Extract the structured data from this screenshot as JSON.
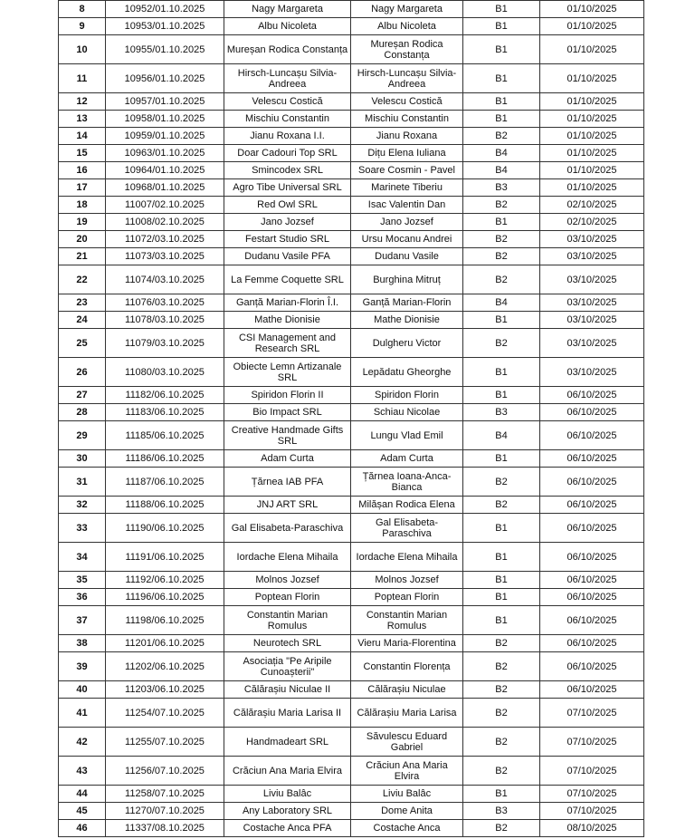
{
  "rows": [
    {
      "nr": "8",
      "reg": "10952/01.10.2025",
      "name": "Nagy Margareta",
      "person": "Nagy Margareta",
      "cat": "B1",
      "date": "01/10/2025"
    },
    {
      "nr": "9",
      "reg": "10953/01.10.2025",
      "name": "Albu Nicoleta",
      "person": "Albu Nicoleta",
      "cat": "B1",
      "date": "01/10/2025"
    },
    {
      "nr": "10",
      "reg": "10955/01.10.2025",
      "name": "Mureșan Rodica Constanța",
      "person": "Mureșan Rodica Constanța",
      "cat": "B1",
      "date": "01/10/2025"
    },
    {
      "nr": "11",
      "reg": "10956/01.10.2025",
      "name": "Hirsch-Luncașu Silvia-Andreea",
      "person": "Hirsch-Luncașu Silvia-Andreea",
      "cat": "B1",
      "date": "01/10/2025"
    },
    {
      "nr": "12",
      "reg": "10957/01.10.2025",
      "name": "Velescu Costică",
      "person": "Velescu Costică",
      "cat": "B1",
      "date": "01/10/2025"
    },
    {
      "nr": "13",
      "reg": "10958/01.10.2025",
      "name": "Mischiu Constantin",
      "person": "Mischiu Constantin",
      "cat": "B1",
      "date": "01/10/2025"
    },
    {
      "nr": "14",
      "reg": "10959/01.10.2025",
      "name": "Jianu Roxana I.I.",
      "person": "Jianu Roxana",
      "cat": "B2",
      "date": "01/10/2025"
    },
    {
      "nr": "15",
      "reg": "10963/01.10.2025",
      "name": "Doar Cadouri Top SRL",
      "person": "Dițu Elena Iuliana",
      "cat": "B4",
      "date": "01/10/2025"
    },
    {
      "nr": "16",
      "reg": "10964/01.10.2025",
      "name": "Smincodex SRL",
      "person": "Soare Cosmin - Pavel",
      "cat": "B4",
      "date": "01/10/2025"
    },
    {
      "nr": "17",
      "reg": "10968/01.10.2025",
      "name": "Agro Tibe Universal SRL",
      "person": "Marinete Tiberiu",
      "cat": "B3",
      "date": "01/10/2025"
    },
    {
      "nr": "18",
      "reg": "11007/02.10.2025",
      "name": "Red Owl SRL",
      "person": "Isac Valentin Dan",
      "cat": "B2",
      "date": "02/10/2025"
    },
    {
      "nr": "19",
      "reg": "11008/02.10.2025",
      "name": "Jano Jozsef",
      "person": "Jano Jozsef",
      "cat": "B1",
      "date": "02/10/2025"
    },
    {
      "nr": "20",
      "reg": "11072/03.10.2025",
      "name": "Festart Studio SRL",
      "person": "Ursu Mocanu Andrei",
      "cat": "B2",
      "date": "03/10/2025"
    },
    {
      "nr": "21",
      "reg": "11073/03.10.2025",
      "name": "Dudanu Vasile PFA",
      "person": "Dudanu Vasile",
      "cat": "B2",
      "date": "03/10/2025"
    },
    {
      "nr": "22",
      "reg": "11074/03.10.2025",
      "name": "La Femme Coquette SRL",
      "person": "Burghina Mitruț",
      "cat": "B2",
      "date": "03/10/2025"
    },
    {
      "nr": "23",
      "reg": "11076/03.10.2025",
      "name": "Ganță Marian-Florin Î.I.",
      "person": "Ganță Marian-Florin",
      "cat": "B4",
      "date": "03/10/2025"
    },
    {
      "nr": "24",
      "reg": "11078/03.10.2025",
      "name": "Mathe Dionisie",
      "person": "Mathe Dionisie",
      "cat": "B1",
      "date": "03/10/2025"
    },
    {
      "nr": "25",
      "reg": "11079/03.10.2025",
      "name": "CSI Management and Research SRL",
      "person": "Dulgheru Victor",
      "cat": "B2",
      "date": "03/10/2025"
    },
    {
      "nr": "26",
      "reg": "11080/03.10.2025",
      "name": "Obiecte Lemn Artizanale SRL",
      "person": "Lepădatu Gheorghe",
      "cat": "B1",
      "date": "03/10/2025"
    },
    {
      "nr": "27",
      "reg": "11182/06.10.2025",
      "name": "Spiridon Florin II",
      "person": "Spiridon Florin",
      "cat": "B1",
      "date": "06/10/2025"
    },
    {
      "nr": "28",
      "reg": "11183/06.10.2025",
      "name": "Bio Impact SRL",
      "person": "Schiau Nicolae",
      "cat": "B3",
      "date": "06/10/2025"
    },
    {
      "nr": "29",
      "reg": "11185/06.10.2025",
      "name": "Creative Handmade Gifts SRL",
      "person": "Lungu Vlad Emil",
      "cat": "B4",
      "date": "06/10/2025"
    },
    {
      "nr": "30",
      "reg": "11186/06.10.2025",
      "name": "Adam Curta",
      "person": "Adam Curta",
      "cat": "B1",
      "date": "06/10/2025"
    },
    {
      "nr": "31",
      "reg": "11187/06.10.2025",
      "name": "Țărnea IAB PFA",
      "person": "Țărnea Ioana-Anca-Bianca",
      "cat": "B2",
      "date": "06/10/2025"
    },
    {
      "nr": "32",
      "reg": "11188/06.10.2025",
      "name": "JNJ ART SRL",
      "person": "Milășan Rodica Elena",
      "cat": "B2",
      "date": "06/10/2025"
    },
    {
      "nr": "33",
      "reg": "11190/06.10.2025",
      "name": "Gal Elisabeta-Paraschiva",
      "person": "Gal Elisabeta-Paraschiva",
      "cat": "B1",
      "date": "06/10/2025"
    },
    {
      "nr": "34",
      "reg": "11191/06.10.2025",
      "name": "Iordache Elena Mihaila",
      "person": "Iordache Elena Mihaila",
      "cat": "B1",
      "date": "06/10/2025"
    },
    {
      "nr": "35",
      "reg": "11192/06.10.2025",
      "name": "Molnos Jozsef",
      "person": "Molnos Jozsef",
      "cat": "B1",
      "date": "06/10/2025"
    },
    {
      "nr": "36",
      "reg": "11196/06.10.2025",
      "name": "Poptean Florin",
      "person": "Poptean Florin",
      "cat": "B1",
      "date": "06/10/2025"
    },
    {
      "nr": "37",
      "reg": "11198/06.10.2025",
      "name": "Constantin Marian Romulus",
      "person": "Constantin Marian Romulus",
      "cat": "B1",
      "date": "06/10/2025"
    },
    {
      "nr": "38",
      "reg": "11201/06.10.2025",
      "name": "Neurotech SRL",
      "person": "Vieru Maria-Florentina",
      "cat": "B2",
      "date": "06/10/2025"
    },
    {
      "nr": "39",
      "reg": "11202/06.10.2025",
      "name": "Asociația \"Pe Aripile Cunoașterii\"",
      "person": "Constantin Florența",
      "cat": "B2",
      "date": "06/10/2025"
    },
    {
      "nr": "40",
      "reg": "11203/06.10.2025",
      "name": "Călărașiu Niculae II",
      "person": "Călărașiu Niculae",
      "cat": "B2",
      "date": "06/10/2025"
    },
    {
      "nr": "41",
      "reg": "11254/07.10.2025",
      "name": "Călărașiu Maria Larisa II",
      "person": "Călărașiu Maria Larisa",
      "cat": "B2",
      "date": "07/10/2025"
    },
    {
      "nr": "42",
      "reg": "11255/07.10.2025",
      "name": "Handmadeart SRL",
      "person": "Săvulescu Eduard Gabriel",
      "cat": "B2",
      "date": "07/10/2025"
    },
    {
      "nr": "43",
      "reg": "11256/07.10.2025",
      "name": "Crăciun Ana Maria Elvira",
      "person": "Crăciun Ana Maria Elvira",
      "cat": "B2",
      "date": "07/10/2025"
    },
    {
      "nr": "44",
      "reg": "11258/07.10.2025",
      "name": "Liviu Balâc",
      "person": "Liviu Balâc",
      "cat": "B1",
      "date": "07/10/2025"
    },
    {
      "nr": "45",
      "reg": "11270/07.10.2025",
      "name": "Any Laboratory SRL",
      "person": "Dome Anita",
      "cat": "B3",
      "date": "07/10/2025"
    },
    {
      "nr": "46",
      "reg": "11337/08.10.2025",
      "name": "Costache Anca PFA",
      "person": "Costache Anca",
      "cat": "B2",
      "date": "08/10/2025"
    }
  ]
}
